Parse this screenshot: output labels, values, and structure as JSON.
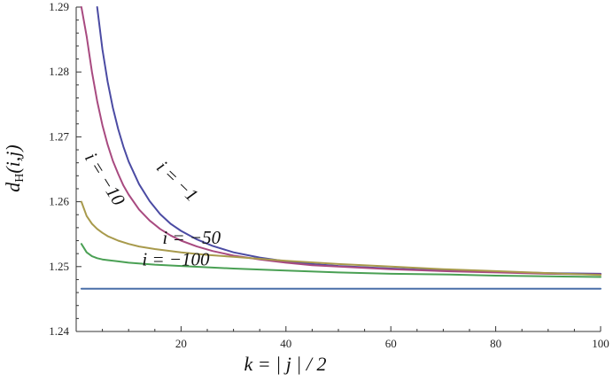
{
  "chart_data": {
    "type": "line",
    "title": "",
    "xlabel": "k = | j | / 2",
    "ylabel": "d_H(i,j)",
    "ylabel_parts": {
      "main": "d",
      "sub": "H",
      "rest": "(i,j)"
    },
    "xlim": [
      0,
      100
    ],
    "ylim": [
      1.24,
      1.29
    ],
    "xticks": [
      20,
      40,
      60,
      80,
      100
    ],
    "yticks": [
      1.24,
      1.25,
      1.26,
      1.27,
      1.28,
      1.29
    ],
    "grid": false,
    "legend": "none",
    "series": [
      {
        "name": "i = −1",
        "color": "#4b4ba3",
        "x": [
          4,
          5,
          6,
          7,
          8,
          9,
          10,
          12,
          14,
          16,
          18,
          20,
          23,
          26,
          30,
          35,
          40,
          45,
          50,
          60,
          70,
          80,
          90,
          100
        ],
        "y": [
          1.29,
          1.2835,
          1.2785,
          1.2745,
          1.2712,
          1.2685,
          1.2662,
          1.2627,
          1.2601,
          1.2581,
          1.2566,
          1.2555,
          1.2542,
          1.2532,
          1.2522,
          1.2514,
          1.2508,
          1.2504,
          1.2501,
          1.2497,
          1.2494,
          1.2492,
          1.249,
          1.2489
        ]
      },
      {
        "name": "i = −10",
        "color": "#a84a80",
        "x": [
          1,
          2,
          3,
          4,
          5,
          6,
          7,
          8,
          9,
          10,
          12,
          14,
          16,
          18,
          20,
          23,
          26,
          30,
          35,
          40,
          45,
          50,
          60,
          70,
          80,
          90,
          100
        ],
        "y": [
          1.29,
          1.2855,
          1.28,
          1.2755,
          1.2718,
          1.2688,
          1.2663,
          1.2643,
          1.2625,
          1.2611,
          1.2588,
          1.2571,
          1.2558,
          1.2548,
          1.254,
          1.2531,
          1.2524,
          1.2517,
          1.2511,
          1.2506,
          1.2502,
          1.25,
          1.2496,
          1.2493,
          1.2491,
          1.2489,
          1.2488
        ]
      },
      {
        "name": "i = −50",
        "color": "#a89a4c",
        "x": [
          1,
          2,
          3,
          4,
          5,
          6,
          8,
          10,
          12,
          15,
          20,
          25,
          30,
          40,
          50,
          60,
          70,
          80,
          90,
          100
        ],
        "y": [
          1.26,
          1.2578,
          1.2566,
          1.2558,
          1.2552,
          1.2547,
          1.254,
          1.2535,
          1.2531,
          1.2527,
          1.2522,
          1.2518,
          1.2515,
          1.2509,
          1.2504,
          1.25,
          1.2496,
          1.2493,
          1.249,
          1.2487
        ]
      },
      {
        "name": "i = −100",
        "color": "#4aa054",
        "x": [
          1,
          2,
          3,
          4,
          5,
          6,
          8,
          10,
          15,
          20,
          30,
          40,
          50,
          60,
          70,
          80,
          90,
          100
        ],
        "y": [
          1.2535,
          1.2522,
          1.2516,
          1.2513,
          1.2511,
          1.251,
          1.2508,
          1.2506,
          1.2503,
          1.2501,
          1.2497,
          1.2494,
          1.2491,
          1.2489,
          1.2488,
          1.2486,
          1.2485,
          1.2484
        ]
      },
      {
        "name": "",
        "color": "#4a6fa8",
        "x": [
          1,
          100
        ],
        "y": [
          1.2466,
          1.2466
        ]
      }
    ],
    "annotations": [
      {
        "text": "i = −1",
        "x": 18.5,
        "y": 1.2625,
        "rotate": 44
      },
      {
        "text": "i = −10",
        "x": 4.5,
        "y": 1.263,
        "rotate": 58
      },
      {
        "text": "i = −50",
        "x": 22,
        "y": 1.2535,
        "rotate": 0
      },
      {
        "text": "i = −100",
        "x": 19,
        "y": 1.2502,
        "rotate": 0
      }
    ]
  }
}
